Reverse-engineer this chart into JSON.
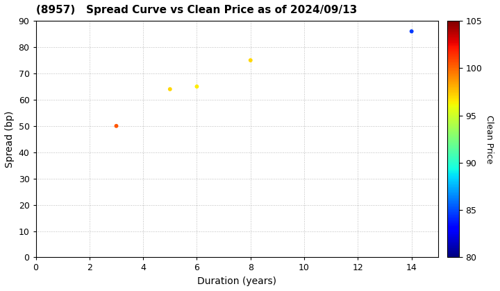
{
  "title": "(8957)   Spread Curve vs Clean Price as of 2024/09/13",
  "xlabel": "Duration (years)",
  "ylabel": "Spread (bp)",
  "colorbar_label": "Clean Price",
  "xlim": [
    0,
    15
  ],
  "ylim": [
    0,
    90
  ],
  "xticks": [
    0,
    2,
    4,
    6,
    8,
    10,
    12,
    14
  ],
  "yticks": [
    0,
    10,
    20,
    30,
    40,
    50,
    60,
    70,
    80,
    90
  ],
  "colorbar_min": 80,
  "colorbar_max": 105,
  "colorbar_ticks": [
    80,
    85,
    90,
    95,
    100,
    105
  ],
  "points": [
    {
      "duration": 3.0,
      "spread": 50,
      "clean_price": 100.5
    },
    {
      "duration": 5.0,
      "spread": 64,
      "clean_price": 97.0
    },
    {
      "duration": 6.0,
      "spread": 65,
      "clean_price": 96.5
    },
    {
      "duration": 8.0,
      "spread": 75,
      "clean_price": 97.0
    },
    {
      "duration": 14.0,
      "spread": 86,
      "clean_price": 84.5
    }
  ],
  "marker_size": 18,
  "background_color": "#ffffff",
  "grid_color": "#bbbbbb",
  "grid_linestyle": ":",
  "title_fontsize": 11,
  "title_fontweight": "bold",
  "axis_label_fontsize": 10,
  "tick_fontsize": 9,
  "colorbar_fontsize": 9,
  "colormap": "jet",
  "fig_width": 7.2,
  "fig_height": 4.2,
  "fig_dpi": 100
}
